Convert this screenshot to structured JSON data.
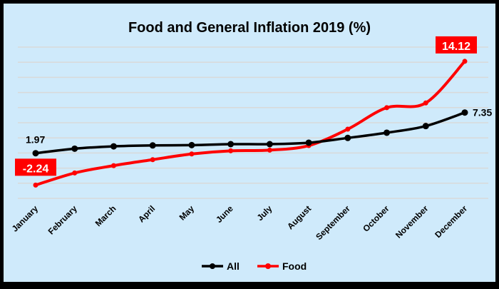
{
  "chart_data": {
    "type": "line",
    "title": "Food and General Inflation 2019 (%)",
    "categories": [
      "January",
      "February",
      "March",
      "April",
      "May",
      "June",
      "July",
      "August",
      "September",
      "October",
      "November",
      "December"
    ],
    "series": [
      {
        "name": "All",
        "color": "#000000",
        "values": [
          1.97,
          2.57,
          2.88,
          3.0,
          3.04,
          3.17,
          3.17,
          3.36,
          3.99,
          4.68,
          5.56,
          7.35
        ]
      },
      {
        "name": "Food",
        "color": "#ff0000",
        "values": [
          -2.24,
          -0.64,
          0.33,
          1.12,
          1.87,
          2.29,
          2.38,
          2.98,
          5.15,
          7.99,
          8.62,
          14.12
        ]
      }
    ],
    "data_labels": [
      {
        "series": "All",
        "category": "January",
        "text": "1.97"
      },
      {
        "series": "All",
        "category": "December",
        "text": "7.35"
      },
      {
        "series": "Food",
        "category": "January",
        "text": "-2.24"
      },
      {
        "series": "Food",
        "category": "December",
        "text": "14.12"
      }
    ],
    "ylim": [
      -4,
      16
    ],
    "ygrid_step": 2,
    "grid": true,
    "y_tick_labels_shown": false,
    "legend_position": "bottom",
    "background": "#cfeafb"
  }
}
